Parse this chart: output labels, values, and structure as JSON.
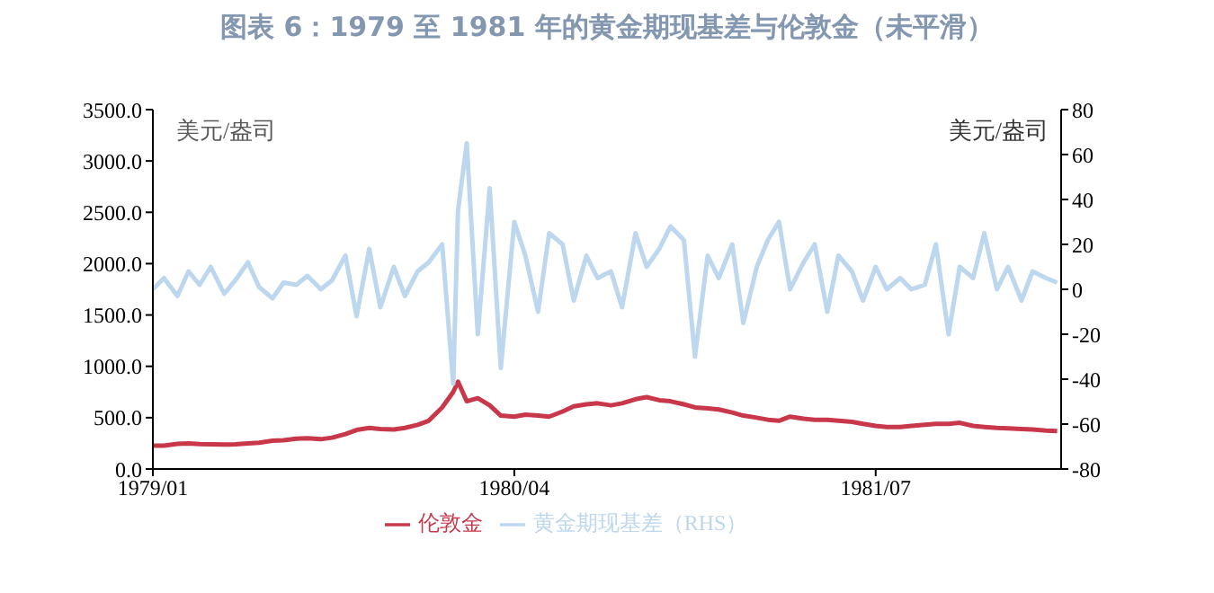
{
  "chart_data": {
    "type": "line",
    "title": "图表 6：1979 至 1981 年的黄金期现基差与伦敦金（未平滑）",
    "ylabel": "美元/盎司",
    "y2label": "美元/盎司",
    "x": [
      "1979-01-01",
      "1979-01-15",
      "1979-02-01",
      "1979-02-15",
      "1979-03-01",
      "1979-03-15",
      "1979-04-01",
      "1979-04-15",
      "1979-05-01",
      "1979-05-15",
      "1979-06-01",
      "1979-06-15",
      "1979-07-01",
      "1979-07-15",
      "1979-08-01",
      "1979-08-15",
      "1979-09-01",
      "1979-09-15",
      "1979-10-01",
      "1979-10-15",
      "1979-11-01",
      "1979-11-15",
      "1979-12-01",
      "1979-12-15",
      "1980-01-01",
      "1980-01-15",
      "1980-01-21",
      "1980-02-01",
      "1980-02-15",
      "1980-03-01",
      "1980-03-15",
      "1980-04-01",
      "1980-04-15",
      "1980-05-01",
      "1980-05-15",
      "1980-06-01",
      "1980-06-15",
      "1980-07-01",
      "1980-07-15",
      "1980-08-01",
      "1980-08-15",
      "1980-09-01",
      "1980-09-15",
      "1980-10-01",
      "1980-10-15",
      "1980-11-01",
      "1980-11-15",
      "1980-12-01",
      "1980-12-15",
      "1981-01-01",
      "1981-01-15",
      "1981-02-01",
      "1981-02-15",
      "1981-03-01",
      "1981-03-15",
      "1981-04-01",
      "1981-04-15",
      "1981-05-01",
      "1981-05-15",
      "1981-06-01",
      "1981-06-15",
      "1981-07-01",
      "1981-07-15",
      "1981-08-01",
      "1981-08-15",
      "1981-09-01",
      "1981-09-15",
      "1981-10-01",
      "1981-10-15",
      "1981-11-01",
      "1981-11-15",
      "1981-12-01",
      "1981-12-15",
      "1982-01-01",
      "1982-01-15",
      "1982-02-01",
      "1982-02-15"
    ],
    "series": [
      {
        "name": "伦敦金",
        "color": "#c8374a",
        "values": [
          227,
          228,
          245,
          250,
          242,
          240,
          238,
          240,
          250,
          256,
          275,
          280,
          295,
          300,
          290,
          305,
          340,
          380,
          400,
          390,
          385,
          400,
          430,
          470,
          600,
          750,
          850,
          660,
          690,
          620,
          520,
          510,
          530,
          520,
          510,
          560,
          610,
          630,
          640,
          620,
          640,
          680,
          700,
          670,
          660,
          630,
          600,
          590,
          580,
          550,
          520,
          500,
          480,
          470,
          510,
          490,
          480,
          480,
          470,
          460,
          440,
          420,
          410,
          410,
          420,
          430,
          440,
          440,
          450,
          420,
          410,
          400,
          395,
          390,
          385,
          375,
          370
        ]
      },
      {
        "name": "黄金期现基差（RHS）",
        "color": "#bdd7ee",
        "axis": "y2",
        "values": [
          0,
          5,
          -3,
          8,
          2,
          10,
          -2,
          4,
          12,
          1,
          -4,
          3,
          2,
          6,
          0,
          4,
          15,
          -12,
          18,
          -8,
          10,
          -3,
          8,
          12,
          20,
          -42,
          35,
          65,
          -20,
          45,
          -35,
          30,
          15,
          -10,
          25,
          20,
          -5,
          15,
          5,
          8,
          -8,
          25,
          10,
          18,
          28,
          22,
          -30,
          15,
          5,
          20,
          -15,
          10,
          22,
          30,
          0,
          12,
          20,
          -10,
          15,
          8,
          -5,
          10,
          0,
          5,
          0,
          2,
          20,
          -20,
          10,
          5,
          25,
          0,
          10,
          -5,
          8,
          5,
          3
        ]
      }
    ],
    "xlim": [
      "1979-01-01",
      "1982-02-20"
    ],
    "xticks": [
      {
        "value": "1979-01-01",
        "label": "1979/01"
      },
      {
        "value": "1980-04-01",
        "label": "1980/04"
      },
      {
        "value": "1981-07-01",
        "label": "1981/07"
      }
    ],
    "ylim": [
      0,
      3500
    ],
    "yticks": [
      {
        "value": 0,
        "label": "0.0"
      },
      {
        "value": 500,
        "label": "500.0"
      },
      {
        "value": 1000,
        "label": "1000.0"
      },
      {
        "value": 1500,
        "label": "1500.0"
      },
      {
        "value": 2000,
        "label": "2000.0"
      },
      {
        "value": 2500,
        "label": "2500.0"
      },
      {
        "value": 3000,
        "label": "3000.0"
      },
      {
        "value": 3500,
        "label": "3500.0"
      }
    ],
    "y2lim": [
      -80,
      80
    ],
    "y2ticks": [
      -80,
      -60,
      -40,
      -20,
      0,
      20,
      40,
      60,
      80
    ],
    "legend": "bottom",
    "grid": false,
    "marker": "none",
    "line_style": "solid"
  }
}
